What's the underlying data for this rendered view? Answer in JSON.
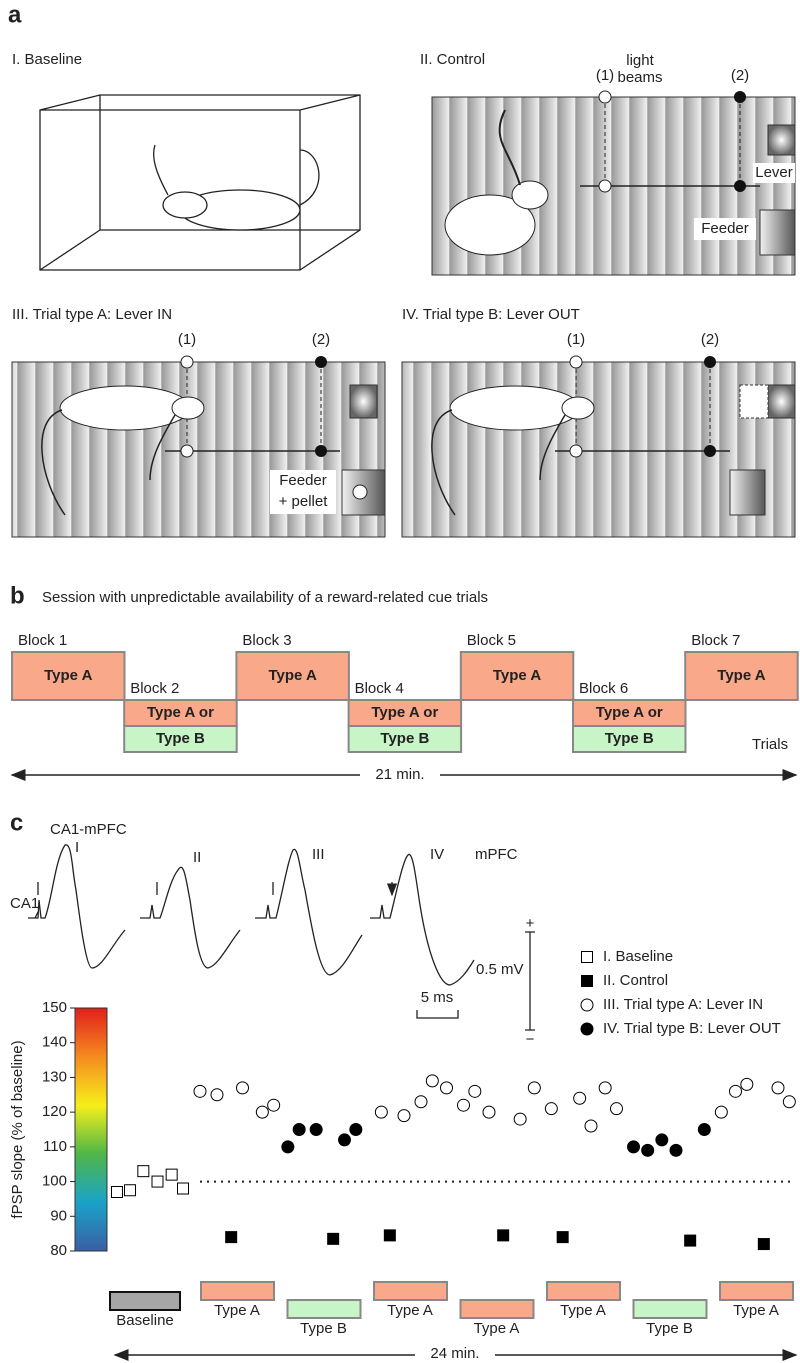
{
  "panel_a": {
    "label": "a",
    "baseline": {
      "title": "I. Baseline"
    },
    "control": {
      "title": "II. Control",
      "beam_label_1": "light",
      "beam_label_2": "beams",
      "beam_1": "(1)",
      "beam_2": "(2)",
      "lever": "Lever",
      "feeder": "Feeder"
    },
    "type_a": {
      "title": "III. Trial type A: Lever IN",
      "beam_1": "(1)",
      "beam_2": "(2)",
      "feeder_1": "Feeder",
      "feeder_2": "+ pellet"
    },
    "type_b": {
      "title": "IV. Trial type B: Lever OUT",
      "beam_1": "(1)",
      "beam_2": "(2)"
    }
  },
  "panel_b": {
    "label": "b",
    "title": "Session with unpredictable availability of a reward-related cue trials",
    "blocks": [
      {
        "name": "Block 1",
        "lines": [
          "Type A"
        ],
        "colors": [
          "#f9a98a"
        ]
      },
      {
        "name": "Block 2",
        "lines": [
          "Type A or",
          "Type B"
        ],
        "colors": [
          "#f9a98a",
          "#c8f5c8"
        ]
      },
      {
        "name": "Block 3",
        "lines": [
          "Type A"
        ],
        "colors": [
          "#f9a98a"
        ]
      },
      {
        "name": "Block 4",
        "lines": [
          "Type A or",
          "Type B"
        ],
        "colors": [
          "#f9a98a",
          "#c8f5c8"
        ]
      },
      {
        "name": "Block 5",
        "lines": [
          "Type A"
        ],
        "colors": [
          "#f9a98a"
        ]
      },
      {
        "name": "Block 6",
        "lines": [
          "Type A or",
          "Type B"
        ],
        "colors": [
          "#f9a98a",
          "#c8f5c8"
        ]
      },
      {
        "name": "Block 7",
        "lines": [
          "Type A"
        ],
        "colors": [
          "#f9a98a"
        ]
      }
    ],
    "trials": "Trials",
    "duration": "21 min."
  },
  "panel_c": {
    "label": "c",
    "pathway": "CA1-mPFC",
    "stim_site": "CA1",
    "record_site": "mPFC",
    "trace_labels": [
      "I",
      "II",
      "III",
      "IV"
    ],
    "scale_plus": "+",
    "scale_minus": "−",
    "amplitude_scale": "0.5 mV",
    "time_scale": "5 ms",
    "phases": [
      "Baseline",
      "Type A",
      "Type B",
      "Type A",
      "Type A",
      "Type A",
      "Type B",
      "Type A"
    ],
    "phase_colors": [
      "#a6a6a6",
      "#f9a98a",
      "#c8f5c8",
      "#f9a98a",
      "#f9a98a",
      "#f9a98a",
      "#c8f5c8",
      "#f9a98a"
    ],
    "duration": "24 min."
  },
  "chart_data": {
    "type": "scatter",
    "y_label": "fPSP slope (% of baseline)",
    "xlim": [
      0,
      24
    ],
    "ylim": [
      80,
      150
    ],
    "yticks": [
      80,
      90,
      100,
      110,
      120,
      130,
      140,
      150
    ],
    "reference_line": 100,
    "colorbar": true,
    "series": [
      {
        "name": "I. Baseline",
        "marker": "square",
        "filled": false,
        "color": "#000000",
        "x": [
          0.07,
          0.53,
          1.0,
          1.5,
          2.0,
          2.4
        ],
        "values": [
          97,
          97.5,
          103,
          100,
          102,
          98
        ]
      },
      {
        "name": "II. Control",
        "marker": "square",
        "filled": true,
        "color": "#000000",
        "x": [
          4.1,
          7.7,
          9.7,
          13.7,
          15.8,
          20.3,
          22.9
        ],
        "values": [
          84,
          83.5,
          84.5,
          84.5,
          84,
          83,
          82
        ]
      },
      {
        "name": "III. Trial type A: Lever IN",
        "marker": "circle",
        "filled": false,
        "color": "#000000",
        "x": [
          3.0,
          3.6,
          4.5,
          5.2,
          5.6,
          9.4,
          10.2,
          10.8,
          11.2,
          11.7,
          12.3,
          12.7,
          13.2,
          14.3,
          14.8,
          15.4,
          16.4,
          16.8,
          17.3,
          17.7,
          21.4,
          21.9,
          22.3,
          23.4,
          23.8
        ],
        "values": [
          126,
          125,
          127,
          120,
          122,
          120,
          119,
          123,
          129,
          127,
          122,
          126,
          120,
          118,
          127,
          121,
          124,
          116,
          127,
          121,
          120,
          126,
          128,
          127,
          123
        ]
      },
      {
        "name": "IV. Trial type B: Lever OUT",
        "marker": "circle",
        "filled": true,
        "color": "#000000",
        "x": [
          6.1,
          6.5,
          7.1,
          8.1,
          8.5,
          18.3,
          18.8,
          19.3,
          19.8,
          20.8
        ],
        "values": [
          110,
          115,
          115,
          112,
          115,
          110,
          109,
          112,
          109,
          115
        ]
      }
    ]
  }
}
